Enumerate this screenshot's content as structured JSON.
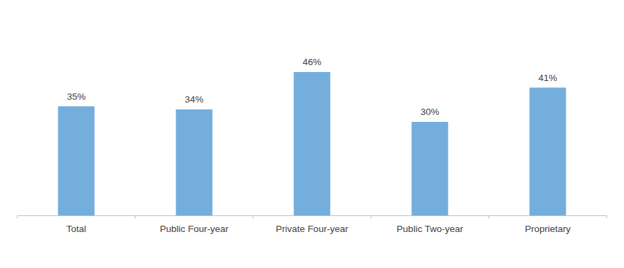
{
  "chart_data": {
    "type": "bar",
    "categories": [
      "Total",
      "Public Four-year",
      "Private Four-year",
      "Public Two-year",
      "Proprietary"
    ],
    "values": [
      35,
      34,
      46,
      30,
      41
    ],
    "value_labels": [
      "35%",
      "34%",
      "46%",
      "30%",
      "41%"
    ],
    "color": "#73aedc",
    "ylim": [
      0,
      50
    ],
    "grid": false,
    "data_labels": true,
    "tick_labels": "x"
  }
}
